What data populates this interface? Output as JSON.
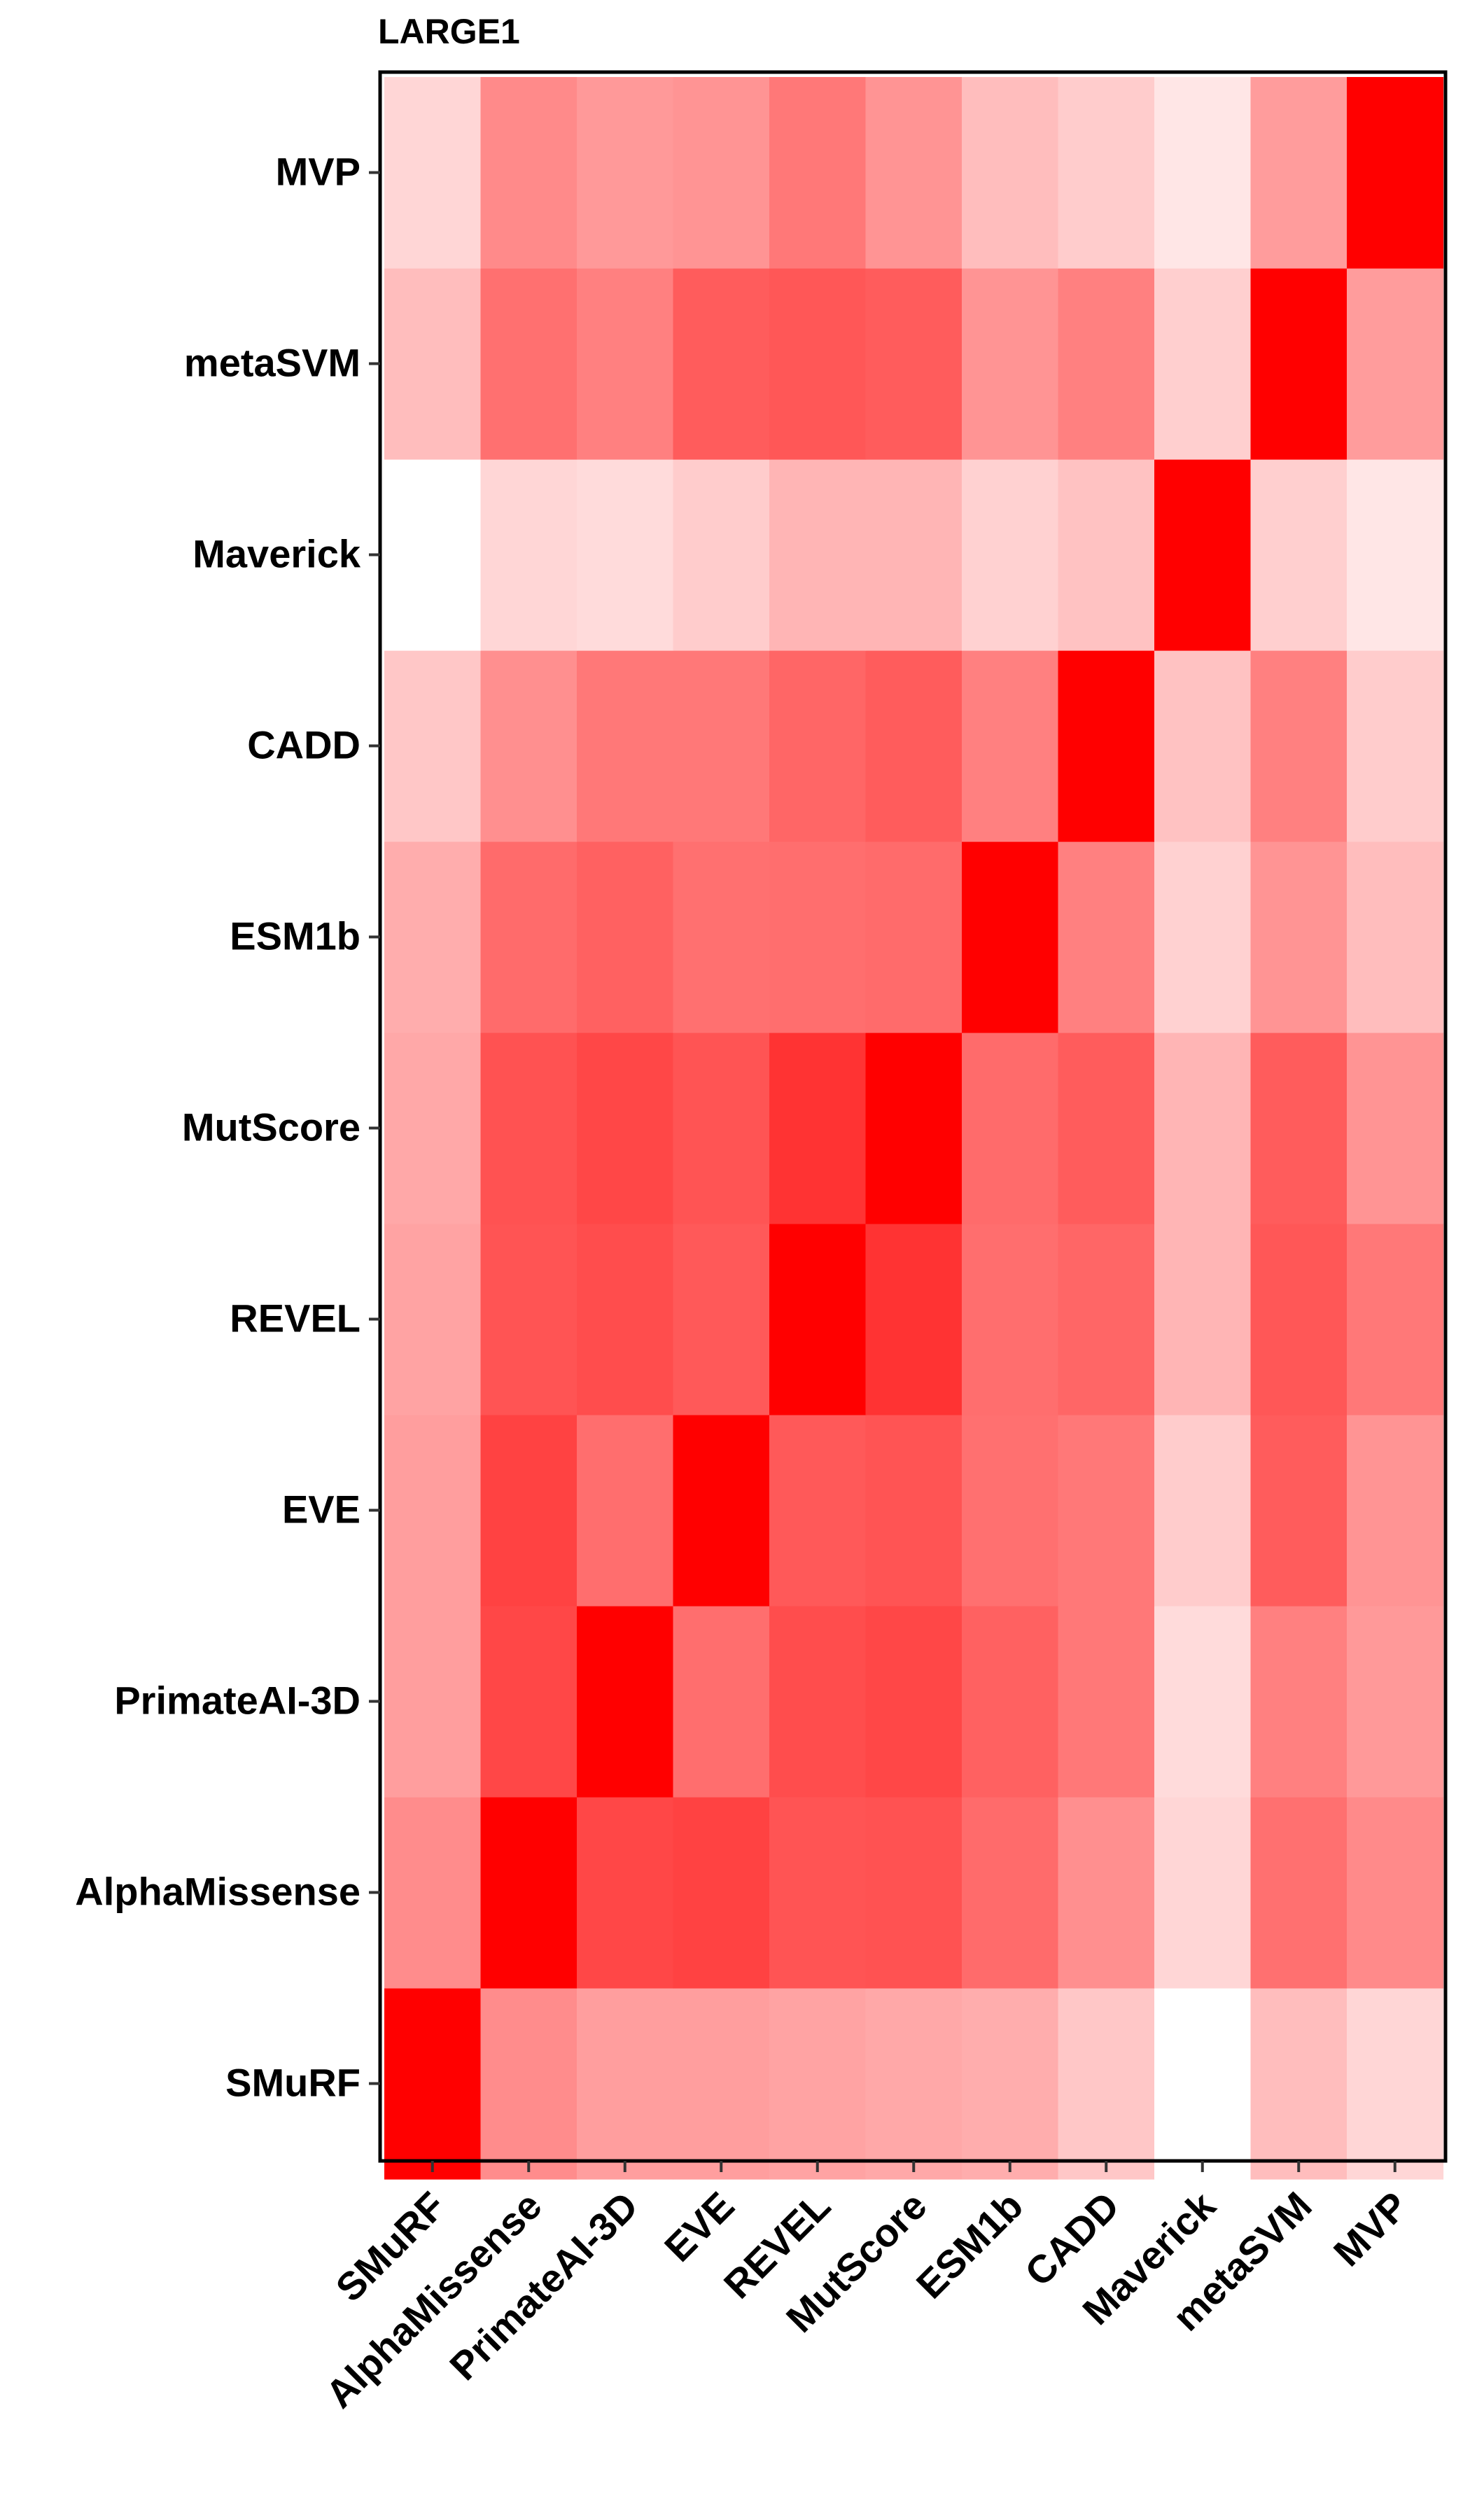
{
  "chart_data": {
    "type": "heatmap",
    "title": "LARGE1",
    "xlabel": "",
    "ylabel": "",
    "x_categories": [
      "SMuRF",
      "AlphaMissense",
      "PrimateAI-3D",
      "EVE",
      "REVEL",
      "MutScore",
      "ESM1b",
      "CADD",
      "Maverick",
      "metaSVM",
      "MVP"
    ],
    "y_categories": [
      "SMuRF",
      "AlphaMissense",
      "PrimateAI-3D",
      "EVE",
      "REVEL",
      "MutScore",
      "ESM1b",
      "CADD",
      "Maverick",
      "metaSVM",
      "MVP"
    ],
    "values": [
      [
        1.0,
        0.45,
        0.38,
        0.38,
        0.36,
        0.34,
        0.32,
        0.22,
        0.0,
        0.26,
        0.16
      ],
      [
        0.45,
        1.0,
        0.72,
        0.74,
        0.67,
        0.68,
        0.58,
        0.44,
        0.16,
        0.56,
        0.46
      ],
      [
        0.38,
        0.72,
        1.0,
        0.57,
        0.7,
        0.72,
        0.62,
        0.53,
        0.14,
        0.5,
        0.4
      ],
      [
        0.38,
        0.74,
        0.57,
        1.0,
        0.65,
        0.67,
        0.56,
        0.53,
        0.2,
        0.64,
        0.42
      ],
      [
        0.36,
        0.67,
        0.7,
        0.65,
        1.0,
        0.8,
        0.57,
        0.6,
        0.29,
        0.66,
        0.53
      ],
      [
        0.34,
        0.68,
        0.72,
        0.67,
        0.8,
        1.0,
        0.58,
        0.64,
        0.29,
        0.64,
        0.42
      ],
      [
        0.32,
        0.58,
        0.62,
        0.56,
        0.57,
        0.58,
        1.0,
        0.5,
        0.18,
        0.42,
        0.26
      ],
      [
        0.22,
        0.44,
        0.53,
        0.53,
        0.6,
        0.64,
        0.5,
        1.0,
        0.24,
        0.5,
        0.2
      ],
      [
        0.0,
        0.16,
        0.14,
        0.2,
        0.29,
        0.29,
        0.18,
        0.24,
        1.0,
        0.19,
        0.1
      ],
      [
        0.26,
        0.56,
        0.5,
        0.64,
        0.66,
        0.64,
        0.42,
        0.5,
        0.19,
        1.0,
        0.39
      ],
      [
        0.16,
        0.46,
        0.4,
        0.42,
        0.53,
        0.42,
        0.26,
        0.2,
        0.1,
        0.39,
        1.0
      ]
    ],
    "value_range": [
      0,
      1
    ],
    "color_low": "#ffffff",
    "color_high": "#ff0000",
    "grid": false,
    "legend": "none",
    "panel_border_color": "#000000"
  }
}
